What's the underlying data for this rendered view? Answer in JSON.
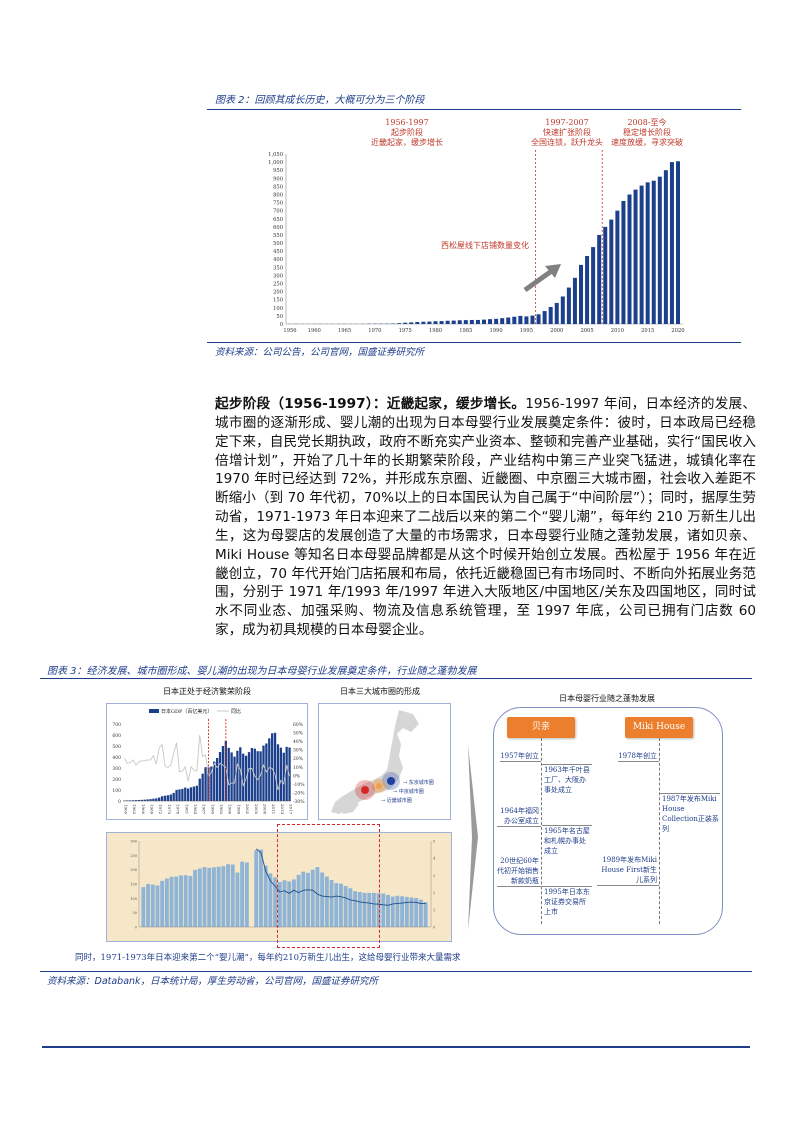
{
  "figure2": {
    "title": "图表 2：回顾其成长历史，大概可分为三个阶段",
    "source": "资料来源：公司公告，公司官网，国盛证券研究所",
    "phases": [
      {
        "years": "1956-1997",
        "name": "起步阶段",
        "desc": "近畿起家，缓步增长"
      },
      {
        "years": "1997-2007",
        "name": "快速扩张阶段",
        "desc": "全国连锁，跃升龙头"
      },
      {
        "years": "2008-至今",
        "name": "稳定增长阶段",
        "desc": "速度放缓，寻求突破"
      }
    ],
    "annotation": "西松屋线下店铺数量变化",
    "colors": {
      "bars": "#1b3f8b",
      "annotation": "#c0392b",
      "arrow": "#808080"
    }
  },
  "chart_data": [
    {
      "type": "bar",
      "title": "",
      "x": [
        1956,
        1957,
        1958,
        1959,
        1960,
        1961,
        1962,
        1963,
        1964,
        1965,
        1966,
        1967,
        1968,
        1969,
        1970,
        1971,
        1972,
        1973,
        1974,
        1975,
        1976,
        1977,
        1978,
        1979,
        1980,
        1981,
        1982,
        1983,
        1984,
        1985,
        1986,
        1987,
        1988,
        1989,
        1990,
        1991,
        1992,
        1993,
        1994,
        1995,
        1996,
        1997,
        1998,
        1999,
        2000,
        2001,
        2002,
        2003,
        2004,
        2005,
        2006,
        2007,
        2008,
        2009,
        2010,
        2011,
        2012,
        2013,
        2014,
        2015,
        2016,
        2017,
        2018,
        2019,
        2020
      ],
      "values": [
        1,
        1,
        1,
        1,
        1,
        1,
        1,
        1,
        1,
        1,
        1,
        1,
        1,
        2,
        2,
        2,
        2,
        3,
        5,
        8,
        10,
        12,
        14,
        15,
        17,
        18,
        20,
        21,
        23,
        24,
        25,
        25,
        27,
        30,
        32,
        36,
        40,
        45,
        50,
        47,
        52,
        60,
        80,
        105,
        130,
        170,
        225,
        285,
        365,
        420,
        475,
        550,
        600,
        645,
        700,
        760,
        800,
        830,
        855,
        875,
        885,
        910,
        950,
        1000,
        1005
      ],
      "ylim": [
        0,
        1050
      ],
      "yticks": [
        "0",
        "50",
        "100",
        "150",
        "200",
        "250",
        "300",
        "350",
        "400",
        "450",
        "500",
        "550",
        "600",
        "650",
        "700",
        "750",
        "800",
        "850",
        "900",
        "950",
        "1,000",
        "1,050"
      ],
      "xtick_labels": [
        "1956",
        "1960",
        "1965",
        "1970",
        "1975",
        "1980",
        "1985",
        "1990",
        "1995",
        "2000",
        "2005",
        "2010",
        "2015",
        "2020"
      ],
      "phase_dividers": [
        1997,
        2008
      ],
      "grid": false
    },
    {
      "type": "bar+line",
      "title": "日本正处于经济繁荣阶段",
      "x": [
        1960,
        1961,
        1962,
        1963,
        1964,
        1965,
        1966,
        1967,
        1968,
        1969,
        1970,
        1971,
        1972,
        1973,
        1974,
        1975,
        1976,
        1977,
        1978,
        1979,
        1980,
        1981,
        1982,
        1983,
        1984,
        1985,
        1986,
        1987,
        1988,
        1989,
        1990,
        1991,
        1992,
        1993,
        1994,
        1995,
        1996,
        1997,
        1998,
        1999,
        2000,
        2001,
        2002,
        2003,
        2004,
        2005,
        2006,
        2007,
        2008,
        2009,
        2010,
        2011,
        2012,
        2013,
        2014,
        2015,
        2016,
        2017
      ],
      "series": [
        {
          "name": "日本GDP（百亿美元）",
          "axis": "left",
          "values": [
            4.4,
            5.4,
            6.0,
            6.9,
            8.1,
            9.0,
            10.5,
            12.3,
            14.6,
            17.2,
            21.2,
            24,
            31.8,
            43.2,
            48,
            52.2,
            58.6,
            73.6,
            101.4,
            105.5,
            110.5,
            121.8,
            113.4,
            124.3,
            131.8,
            138.5,
            203.1,
            248.4,
            307.1,
            305.5,
            313.2,
            358.4,
            390.9,
            445.4,
            499.8,
            544.9,
            483.3,
            441.4,
            403.2,
            456.2,
            488.8,
            430.3,
            411.5,
            444.5,
            481.5,
            475.5,
            453,
            451.5,
            503.8,
            523.1,
            570,
            615.7,
            620.3,
            515.5,
            485,
            438.9,
            492.6,
            486
          ]
        },
        {
          "name": "同比",
          "axis": "right",
          "values": [
            20,
            14,
            15,
            18,
            12,
            16,
            17,
            17,
            18,
            18,
            23,
            13,
            32,
            36,
            11,
            9,
            12,
            26,
            38,
            4,
            5,
            10,
            -7,
            10,
            6,
            5,
            47,
            22,
            24,
            -1,
            3,
            14,
            9,
            14,
            12,
            9,
            -11,
            -9,
            -9,
            13,
            7,
            -12,
            -4,
            8,
            8,
            -1,
            -5,
            0,
            12,
            4,
            9,
            8,
            1,
            -17,
            -6,
            -10,
            12,
            -1
          ]
        }
      ],
      "ylim": [
        0,
        700
      ],
      "y2lim": [
        -30,
        60
      ],
      "yticks": [
        "0",
        "100",
        "200",
        "300",
        "400",
        "500",
        "600",
        "700"
      ],
      "y2ticks": [
        "-30%",
        "-20%",
        "-10%",
        "0%",
        "10%",
        "20%",
        "30%",
        "40%",
        "50%",
        "60%"
      ],
      "xtick_labels": [
        "1960",
        "1963",
        "1966",
        "1969",
        "1972",
        "1975",
        "1978",
        "1981",
        "1984",
        "1987",
        "1990",
        "1993",
        "1996",
        "1999",
        "2002",
        "2005",
        "2008",
        "2011",
        "2014",
        "2017"
      ],
      "colors": {
        "bars": "#1b3f8b",
        "line": "#c8c8c8",
        "dividers": "#d62728"
      }
    },
    {
      "type": "bar+line",
      "title": "",
      "x_bars": [
        1899,
        1901,
        1903,
        1905,
        1907,
        1909,
        1911,
        1913,
        1915,
        1917,
        1919,
        1921,
        1923,
        1925,
        1927,
        1929,
        1931,
        1933,
        1935,
        1937,
        1939,
        1941,
        1943,
        1945,
        1947,
        1949,
        1951,
        1953,
        1955,
        1957,
        1959,
        1961,
        1963,
        1965,
        1967,
        1969,
        1971,
        1973,
        1975,
        1977,
        1979,
        1981,
        1983,
        1985,
        1987,
        1989,
        1991,
        1993,
        1995,
        1997,
        1999,
        2001,
        2003,
        2005,
        2007,
        2009,
        2011,
        2013,
        2015,
        2017,
        2019
      ],
      "births_10k": [
        139,
        150,
        148,
        145,
        161,
        169,
        175,
        176,
        180,
        181,
        178,
        199,
        204,
        209,
        206,
        208,
        210,
        212,
        219,
        218,
        190,
        228,
        225,
        null,
        268,
        270,
        214,
        187,
        173,
        157,
        163,
        159,
        166,
        182,
        193,
        189,
        200,
        209,
        190,
        176,
        164,
        153,
        151,
        143,
        135,
        125,
        122,
        119,
        119,
        119,
        118,
        117,
        112,
        106,
        109,
        107,
        105,
        103,
        101,
        95,
        87
      ],
      "x_line": [
        1947,
        1949,
        1951,
        1953,
        1955,
        1957,
        1959,
        1961,
        1963,
        1965,
        1967,
        1969,
        1971,
        1973,
        1975,
        1977,
        1979,
        1981,
        1983,
        1985,
        1987,
        1989,
        1991,
        1993,
        1995,
        1997,
        1999,
        2001,
        2003,
        2005,
        2007,
        2009,
        2011,
        2013,
        2015,
        2017,
        2019
      ],
      "total_fertility_rate": [
        4.54,
        4.32,
        3.26,
        2.69,
        2.37,
        2.04,
        2.11,
        1.96,
        2.14,
        2.0,
        2.13,
        2.16,
        2.14,
        1.91,
        1.8,
        1.77,
        1.74,
        1.8,
        1.76,
        1.69,
        1.57,
        1.53,
        1.46,
        1.42,
        1.39,
        1.34,
        1.33,
        1.29,
        1.26,
        1.34,
        1.37,
        1.39,
        1.43,
        1.45,
        1.43,
        1.36,
        1.36
      ],
      "ylim": [
        0,
        300
      ],
      "y2lim": [
        0,
        5
      ],
      "colors": {
        "bars": "#8fb4d6",
        "line": "#1f4e8c",
        "background": "#f6e7c8",
        "highlight": "#d62728"
      }
    }
  ],
  "body": {
    "lead": "起步阶段（1956-1997）：近畿起家，缓步增长。",
    "text": "1956-1997 年间，日本经济的发展、城市圈的逐渐形成、婴儿潮的出现为日本母婴行业发展奠定条件：彼时，日本政局已经稳定下来，自民党长期执政，政府不断充实产业资本、整顿和完善产业基础，实行“国民收入倍增计划”，开始了几十年的长期繁荣阶段，产业结构中第三产业突飞猛进，城镇化率在 1970 年时已经达到 72%，并形成东京圈、近畿圈、中京圈三大城市圈，社会收入差距不断缩小（到 70 年代初，70%以上的日本国民认为自己属于“中间阶层”）；同时，据厚生劳动省，1971-1973 年日本迎来了二战后以来的第二个“婴儿潮”，每年约 210 万新生儿出生，这为母婴店的发展创造了大量的市场需求，日本母婴行业随之蓬勃发展，诸如贝亲、Miki House 等知名日本母婴品牌都是从这个时候开始创立发展。西松屋于 1956 年在近畿创立，70 年代开始门店拓展和布局，依托近畿稳固已有市场同时、不断向外拓展业务范围，分别于 1971 年/1993 年/1997 年进入大阪地区/中国地区/关东及四国地区，同时试水不同业态、加强采购、物流及信息系统管理，至 1997 年底，公司已拥有门店数 60 家，成为初具规模的日本母婴企业。"
  },
  "figure3": {
    "title": "图表 3：经济发展、城市圈形成、婴儿潮的出现为日本母婴行业发展奠定条件，行业随之蓬勃发展",
    "gdp_subtitle": "日本正处于经济繁荣阶段",
    "map_subtitle": "日本三大城市圈的形成",
    "map_labels": [
      "东京城市圈",
      "中京城市圈",
      "近畿城市圈"
    ],
    "map_colors": {
      "tokyo": "#1f3fa0",
      "chukyo": "#f0a050",
      "kinki": "#d62728"
    },
    "industry_title": "日本母婴行业随之蓬勃发展",
    "brands": [
      {
        "name": "贝亲",
        "events_left": [
          "1957年创立",
          "1964年福冈办公室成立",
          "20世纪60年代初开始销售新款奶瓶"
        ],
        "events_right": [
          "1963年千叶县工厂、大阪办事处成立",
          "1965年名古屋和札幌办事处成立",
          "1995年日本东京证券交易所上市"
        ]
      },
      {
        "name": "Miki House",
        "events_left": [
          "1978年创立",
          "1989年发布Miki House First新生儿系列"
        ],
        "events_right": [
          "1987年发布Miki House Collection正装系列"
        ]
      }
    ],
    "brand_color": "#ec7f2d",
    "caption": "同时，1971-1973年日本迎来第二个“婴儿潮”，每年约210万新生儿出生，这给母婴行业带来大量需求",
    "source": "资料来源：Databank，日本统计局，厚生劳动省，公司官网，国盛证券研究所"
  }
}
